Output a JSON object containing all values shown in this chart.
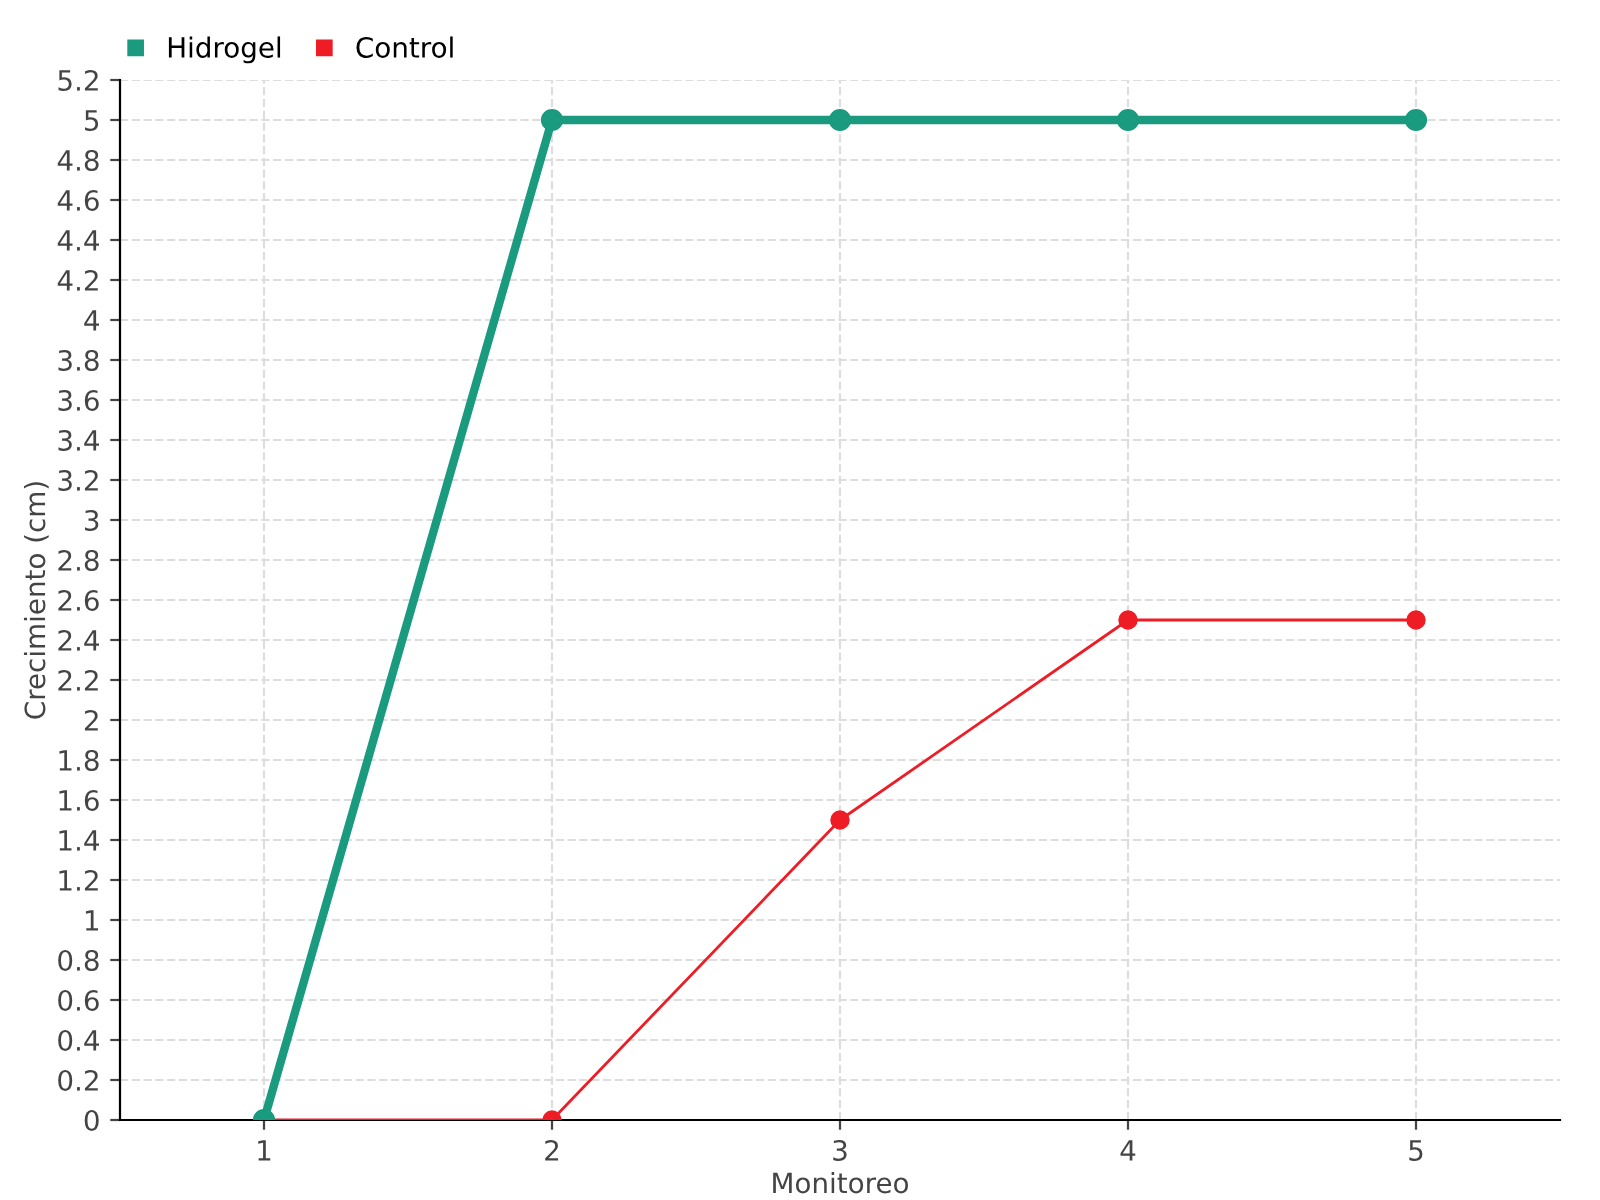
{
  "chart_data": {
    "type": "line",
    "xlabel": "Monitoreo",
    "ylabel": "Crecimiento (cm)",
    "x": [
      1,
      2,
      3,
      4,
      5
    ],
    "series": [
      {
        "name": "Hidrogel",
        "color": "#1a9a7e",
        "values": [
          0,
          5,
          5,
          5,
          5
        ]
      },
      {
        "name": "Control",
        "color": "#ee1c25",
        "values": [
          0,
          0,
          1.5,
          2.5,
          2.5
        ]
      }
    ],
    "xlim": [
      0.5,
      5.5
    ],
    "xticks": [
      1,
      2,
      3,
      4,
      5
    ],
    "ylim": [
      0,
      5.2
    ],
    "yticks": [
      0,
      0.2,
      0.4,
      0.6,
      0.8,
      1,
      1.2,
      1.4,
      1.6,
      1.8,
      2,
      2.2,
      2.4,
      2.6,
      2.8,
      3,
      3.2,
      3.4,
      3.6,
      3.8,
      4,
      4.2,
      4.4,
      4.6,
      4.8,
      5,
      5.2
    ],
    "grid": true,
    "legend": "top left",
    "marker": "circle",
    "line_style": "solid"
  }
}
